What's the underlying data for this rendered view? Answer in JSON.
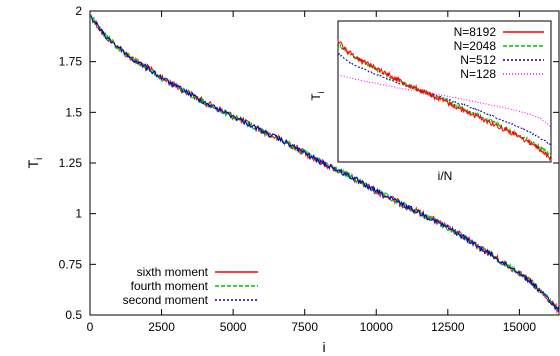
{
  "chart_data": [
    {
      "type": "line",
      "xlabel": "i",
      "ylabel": "T",
      "ylabel_sub": "i",
      "xlim": [
        0,
        16384
      ],
      "ylim": [
        0.5,
        2.0
      ],
      "x_ticks": [
        0,
        2500,
        5000,
        7500,
        10000,
        12500,
        15000
      ],
      "x_tick_labels": [
        "0",
        "2500",
        "5000",
        "7500",
        "10000",
        "12500",
        "15000"
      ],
      "y_ticks": [
        0.5,
        0.75,
        1.0,
        1.25,
        1.5,
        1.75,
        2.0
      ],
      "y_tick_labels": [
        "0.5",
        "0.75",
        "1",
        "1.25",
        "1.5",
        "1.75",
        "2"
      ],
      "grid": false,
      "legend_position": "bottom-left",
      "x": [
        0,
        250,
        500,
        1000,
        1500,
        2000,
        2500,
        3000,
        4000,
        5000,
        6000,
        7000,
        7500,
        8000,
        9000,
        10000,
        11000,
        12000,
        12500,
        13000,
        13500,
        14000,
        14500,
        15000,
        15500,
        16000,
        16384
      ],
      "series": [
        {
          "name": "sixth moment",
          "color": "#ff0000",
          "values": [
            1.98,
            1.93,
            1.88,
            1.82,
            1.76,
            1.72,
            1.67,
            1.63,
            1.55,
            1.48,
            1.41,
            1.34,
            1.3,
            1.26,
            1.19,
            1.11,
            1.04,
            0.97,
            0.93,
            0.89,
            0.84,
            0.8,
            0.75,
            0.71,
            0.65,
            0.58,
            0.52
          ]
        },
        {
          "name": "fourth moment",
          "color": "#00c000",
          "values": [
            1.98,
            1.93,
            1.88,
            1.82,
            1.76,
            1.72,
            1.67,
            1.63,
            1.55,
            1.48,
            1.41,
            1.34,
            1.3,
            1.26,
            1.19,
            1.11,
            1.04,
            0.97,
            0.93,
            0.89,
            0.84,
            0.8,
            0.75,
            0.71,
            0.65,
            0.58,
            0.52
          ]
        },
        {
          "name": "second moment",
          "color": "#0000cc",
          "values": [
            1.98,
            1.93,
            1.88,
            1.82,
            1.76,
            1.72,
            1.67,
            1.63,
            1.55,
            1.48,
            1.41,
            1.34,
            1.3,
            1.26,
            1.19,
            1.11,
            1.04,
            0.97,
            0.93,
            0.89,
            0.84,
            0.8,
            0.75,
            0.71,
            0.65,
            0.58,
            0.52
          ]
        }
      ]
    },
    {
      "type": "line",
      "inset": true,
      "xlabel": "i/N",
      "ylabel": "T",
      "ylabel_sub": "i",
      "xlim": [
        0,
        1
      ],
      "ylim": [
        0,
        1
      ],
      "grid": false,
      "legend_position": "top-right",
      "x": [
        0,
        0.05,
        0.1,
        0.2,
        0.3,
        0.4,
        0.5,
        0.6,
        0.7,
        0.8,
        0.9,
        0.95,
        1.0
      ],
      "series": [
        {
          "name": "N=8192",
          "color": "#ff0000",
          "values": [
            0.86,
            0.78,
            0.73,
            0.65,
            0.57,
            0.5,
            0.43,
            0.36,
            0.29,
            0.22,
            0.14,
            0.09,
            0.02
          ]
        },
        {
          "name": "N=2048",
          "color": "#00c000",
          "values": [
            0.84,
            0.77,
            0.72,
            0.64,
            0.56,
            0.5,
            0.44,
            0.37,
            0.3,
            0.23,
            0.15,
            0.1,
            0.05
          ]
        },
        {
          "name": "N=512",
          "color": "#0000aa",
          "values": [
            0.77,
            0.71,
            0.67,
            0.61,
            0.55,
            0.5,
            0.45,
            0.4,
            0.34,
            0.28,
            0.21,
            0.17,
            0.12
          ]
        },
        {
          "name": "N=128",
          "color": "#ff00ff",
          "values": [
            0.62,
            0.6,
            0.58,
            0.55,
            0.52,
            0.5,
            0.47,
            0.44,
            0.41,
            0.38,
            0.34,
            0.31,
            0.25
          ]
        }
      ]
    }
  ]
}
